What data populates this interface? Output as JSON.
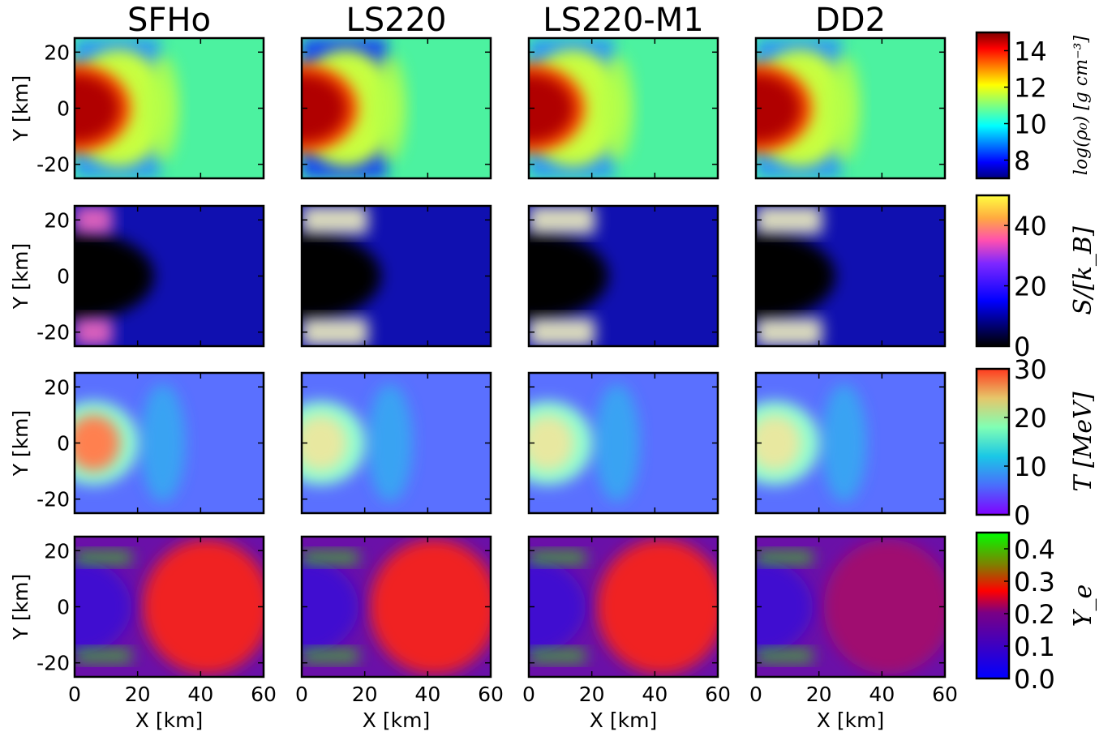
{
  "chart_data": {
    "type": "heatmap",
    "description_columns": [
      "SFHo",
      "LS220",
      "LS220-M1",
      "DD2"
    ],
    "x_axis": {
      "label": "X [km]",
      "range": [
        0,
        60
      ],
      "ticks": [
        "0",
        "20",
        "40",
        "60"
      ]
    },
    "y_axis": {
      "label": "Y [km]",
      "range": [
        -25,
        25
      ],
      "ticks": [
        "20",
        "0",
        "-20"
      ]
    },
    "rows": [
      {
        "quantity": "log(ρ0) [g cm^-3]",
        "colorbar_label": "log(ρ₀) [g cm⁻³]",
        "colormap": "jet",
        "range": [
          7,
          15
        ],
        "ticks": [
          "14",
          "12",
          "10",
          "8"
        ]
      },
      {
        "quantity": "S/[kB]",
        "colorbar_label": "S/[k_B]",
        "colormap": "gnuplot2",
        "range": [
          0,
          50
        ],
        "ticks": [
          "40",
          "20",
          "0"
        ]
      },
      {
        "quantity": "T [MeV]",
        "colorbar_label": "T [MeV]",
        "colormap": "rainbow",
        "range": [
          0,
          30
        ],
        "ticks": [
          "30",
          "20",
          "10",
          "0"
        ]
      },
      {
        "quantity": "Ye",
        "colorbar_label": "Y_e",
        "colormap": "brg",
        "range": [
          0,
          0.45
        ],
        "ticks": [
          "0.4",
          "0.3",
          "0.2",
          "0.1",
          "0.0"
        ]
      }
    ]
  }
}
